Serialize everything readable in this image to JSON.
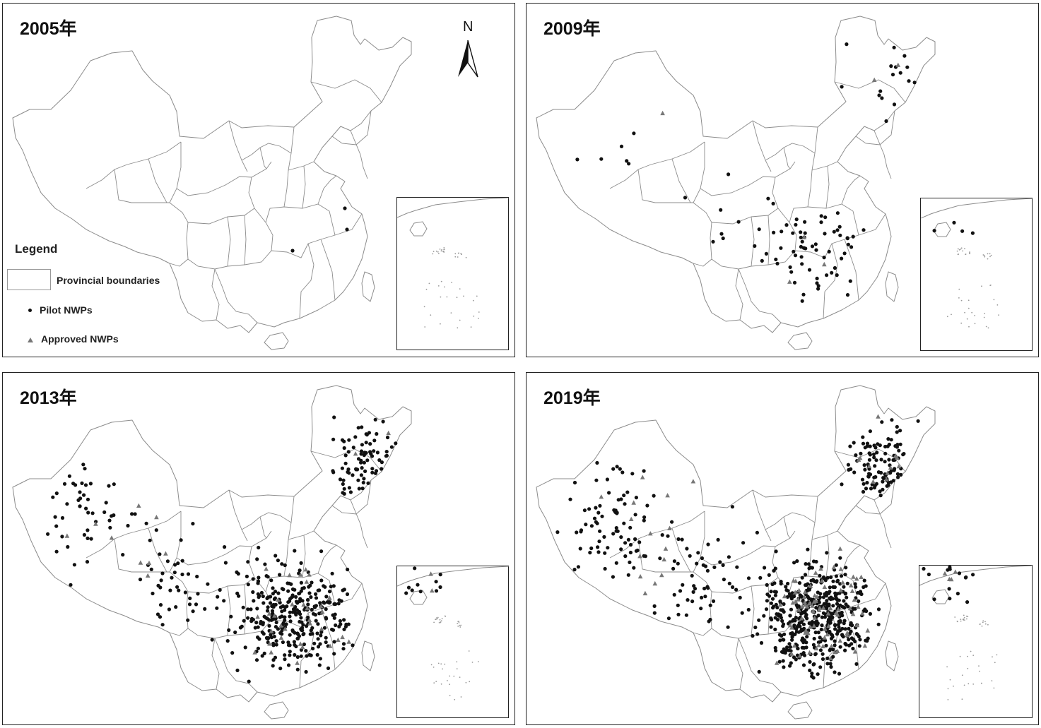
{
  "panels": [
    {
      "title": "2005年",
      "pilot_count": 3,
      "approved_count": 0,
      "inset_pilot": 0,
      "inset_approved": 0
    },
    {
      "title": "2009年",
      "pilot_count": 95,
      "approved_count": 6,
      "inset_pilot": 4,
      "inset_approved": 0
    },
    {
      "title": "2013年",
      "pilot_count": 500,
      "approved_count": 45,
      "inset_pilot": 10,
      "inset_approved": 2
    },
    {
      "title": "2019年",
      "pilot_count": 720,
      "approved_count": 110,
      "inset_pilot": 14,
      "inset_approved": 4
    }
  ],
  "legend": {
    "title": "Legend",
    "provincial_boundaries": "Provincial boundaries",
    "pilot": "Pilot NWPs",
    "approved": "Approved NWPs"
  },
  "north_arrow": {
    "label": "N"
  },
  "colors": {
    "pilot": "#111111",
    "approved": "#777777",
    "boundary": "#8c8c8c",
    "frame": "#222222"
  }
}
